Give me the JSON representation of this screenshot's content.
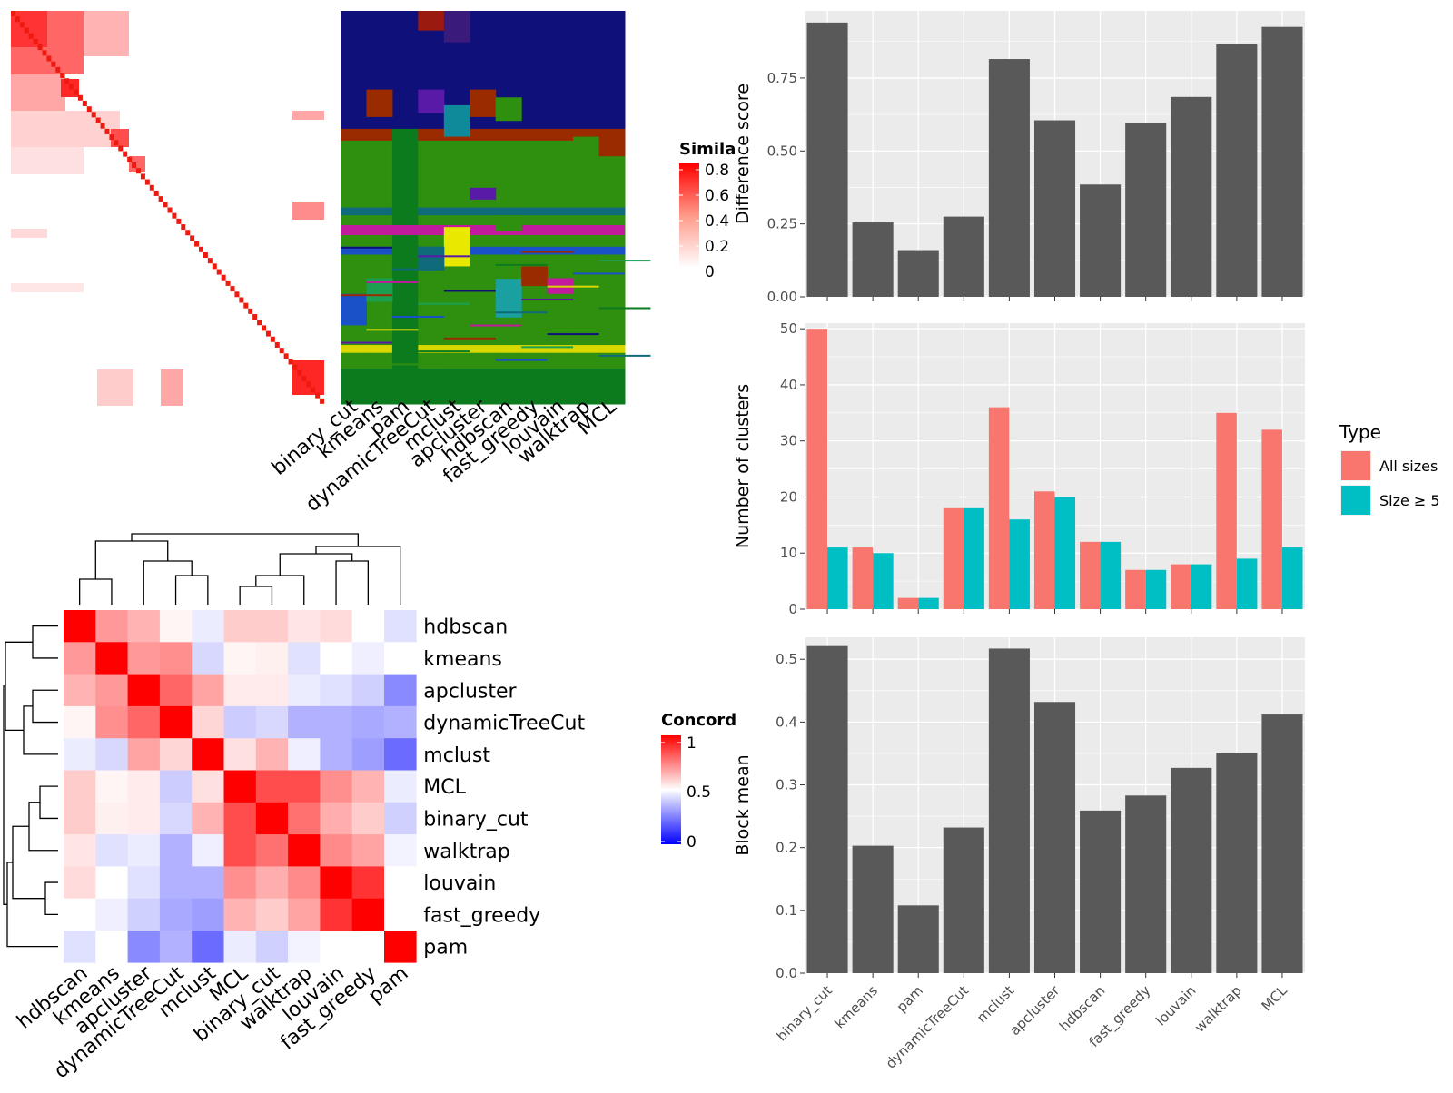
{
  "methods": [
    "binary_cut",
    "kmeans",
    "pam",
    "dynamicTreeCut",
    "mclust",
    "apcluster",
    "hdbscan",
    "fast_greedy",
    "louvain",
    "walktrap",
    "MCL"
  ],
  "colors": {
    "panel_bg": "#ebebeb",
    "grid": "#ffffff",
    "bar": "#595959",
    "all_sizes": "#f8766d",
    "size_ge5": "#00bfc4",
    "heat_red": "#ff0000",
    "heat_blue": "#0000ff"
  },
  "similarity_legend": {
    "title": "Simila",
    "labels": [
      "0.8",
      "0.6",
      "0.4",
      "0.2",
      "0"
    ]
  },
  "concordance_legend": {
    "title": "Concord",
    "labels": [
      "1",
      "0.5",
      "0"
    ]
  },
  "concordance_heatmap": {
    "order": [
      "hdbscan",
      "kmeans",
      "apcluster",
      "dynamicTreeCut",
      "mclust",
      "MCL",
      "binary_cut",
      "walktrap",
      "louvain",
      "fast_greedy",
      "pam"
    ],
    "matrix": [
      [
        1.0,
        0.7,
        0.65,
        0.52,
        0.45,
        0.6,
        0.6,
        0.55,
        0.57,
        0.5,
        0.42
      ],
      [
        0.7,
        1.0,
        0.7,
        0.72,
        0.4,
        0.52,
        0.53,
        0.42,
        0.5,
        0.46,
        0.5
      ],
      [
        0.65,
        0.7,
        1.0,
        0.8,
        0.68,
        0.54,
        0.54,
        0.45,
        0.42,
        0.38,
        0.2
      ],
      [
        0.52,
        0.72,
        0.8,
        1.0,
        0.58,
        0.37,
        0.4,
        0.3,
        0.3,
        0.28,
        0.3
      ],
      [
        0.45,
        0.4,
        0.68,
        0.58,
        1.0,
        0.56,
        0.65,
        0.46,
        0.3,
        0.25,
        0.12
      ],
      [
        0.6,
        0.52,
        0.54,
        0.37,
        0.56,
        1.0,
        0.85,
        0.85,
        0.72,
        0.65,
        0.45
      ],
      [
        0.6,
        0.53,
        0.54,
        0.4,
        0.65,
        0.85,
        1.0,
        0.78,
        0.66,
        0.6,
        0.38
      ],
      [
        0.55,
        0.42,
        0.45,
        0.3,
        0.46,
        0.85,
        0.78,
        1.0,
        0.73,
        0.68,
        0.47
      ],
      [
        0.57,
        0.5,
        0.42,
        0.3,
        0.3,
        0.72,
        0.66,
        0.73,
        1.0,
        0.9,
        0.5
      ],
      [
        0.5,
        0.46,
        0.38,
        0.28,
        0.25,
        0.65,
        0.6,
        0.68,
        0.9,
        1.0,
        0.5
      ],
      [
        0.42,
        0.5,
        0.2,
        0.3,
        0.12,
        0.45,
        0.38,
        0.47,
        0.5,
        0.5,
        1.0
      ]
    ]
  },
  "chart_data": [
    {
      "type": "bar",
      "categories": [
        "binary_cut",
        "kmeans",
        "pam",
        "dynamicTreeCut",
        "mclust",
        "apcluster",
        "hdbscan",
        "fast_greedy",
        "louvain",
        "walktrap",
        "MCL"
      ],
      "values": [
        0.94,
        0.255,
        0.16,
        0.275,
        0.815,
        0.605,
        0.385,
        0.595,
        0.685,
        0.865,
        0.925
      ],
      "ylabel": "Difference score",
      "ylim": [
        0,
        0.98
      ],
      "yticks": [
        0.0,
        0.25,
        0.5,
        0.75
      ],
      "ytick_labels": [
        "0.00",
        "0.25",
        "0.50",
        "0.75"
      ],
      "grid": true
    },
    {
      "type": "bar",
      "categories": [
        "binary_cut",
        "kmeans",
        "pam",
        "dynamicTreeCut",
        "mclust",
        "apcluster",
        "hdbscan",
        "fast_greedy",
        "louvain",
        "walktrap",
        "MCL"
      ],
      "series": [
        {
          "name": "All sizes",
          "values": [
            50,
            11,
            2,
            18,
            36,
            21,
            12,
            7,
            8,
            35,
            32
          ]
        },
        {
          "name": "Size ≥ 5",
          "values": [
            11,
            10,
            2,
            18,
            16,
            20,
            12,
            7,
            8,
            9,
            11
          ]
        }
      ],
      "ylabel": "Number of clusters",
      "ylim": [
        0,
        51
      ],
      "yticks": [
        0,
        10,
        20,
        30,
        40,
        50
      ],
      "ytick_labels": [
        "0",
        "10",
        "20",
        "30",
        "40",
        "50"
      ],
      "legend_title": "Type",
      "legend_position": "right",
      "grid": true
    },
    {
      "type": "bar",
      "categories": [
        "binary_cut",
        "kmeans",
        "pam",
        "dynamicTreeCut",
        "mclust",
        "apcluster",
        "hdbscan",
        "fast_greedy",
        "louvain",
        "walktrap",
        "MCL"
      ],
      "values": [
        0.521,
        0.203,
        0.108,
        0.232,
        0.517,
        0.432,
        0.259,
        0.283,
        0.327,
        0.351,
        0.412
      ],
      "ylabel": "Block mean",
      "ylim": [
        0,
        0.535
      ],
      "yticks": [
        0.0,
        0.1,
        0.2,
        0.3,
        0.4,
        0.5
      ],
      "ytick_labels": [
        "0.0",
        "0.1",
        "0.2",
        "0.3",
        "0.4",
        "0.5"
      ],
      "grid": true
    }
  ]
}
